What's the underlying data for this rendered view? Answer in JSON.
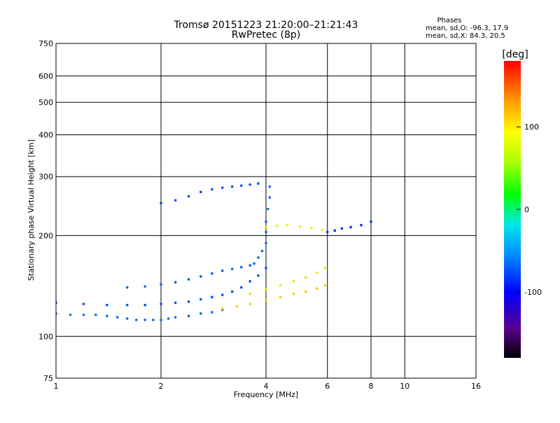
{
  "chart_data": {
    "type": "scatter",
    "title": "Tromsø 20151223 21:20:00–21:21:43",
    "subtitle": "RwPretec (8p)",
    "stats": {
      "header": "Phases",
      "o_line": "mean, sd,O: -96.3, 17.9",
      "x_line": "mean, sd,X:  84.3, 20.5"
    },
    "xlabel": "Frequency [MHz]",
    "ylabel": "Stationary phase Virtual Height [km]",
    "xscale": "log2",
    "yscale": "log",
    "xlim": [
      1,
      16
    ],
    "ylim": [
      75,
      750
    ],
    "xticks": [
      {
        "v": 1,
        "label": "1"
      },
      {
        "v": 2,
        "label": "2"
      },
      {
        "v": 4,
        "label": "4"
      },
      {
        "v": 6,
        "label": "6"
      },
      {
        "v": 8,
        "label": "8"
      },
      {
        "v": 10,
        "label": "10"
      },
      {
        "v": 16,
        "label": "16"
      }
    ],
    "yticks": [
      {
        "v": 75,
        "label": "75"
      },
      {
        "v": 100,
        "label": "100"
      },
      {
        "v": 200,
        "label": "200"
      },
      {
        "v": 300,
        "label": "300"
      },
      {
        "v": 400,
        "label": "400"
      },
      {
        "v": 500,
        "label": "500"
      },
      {
        "v": 600,
        "label": "600"
      },
      {
        "v": 750,
        "label": "750"
      }
    ],
    "grid": true,
    "colorbar": {
      "label": "[deg]",
      "range": [
        -180,
        180
      ],
      "ticks": [
        {
          "v": 100,
          "label": "100"
        },
        {
          "v": 0,
          "label": "0"
        },
        {
          "v": -100,
          "label": "-100"
        }
      ]
    },
    "series": [
      {
        "trace": "o-trace lower layer",
        "x": [
          1.0,
          1.1,
          1.2,
          1.3,
          1.4,
          1.5,
          1.6,
          1.7,
          1.8,
          1.9,
          2.0,
          2.1,
          2.2,
          2.4,
          2.6,
          2.8,
          3.0
        ],
        "y": [
          117,
          116,
          116,
          116,
          115,
          114,
          113,
          112,
          112,
          112,
          112,
          113,
          114,
          115,
          117,
          118,
          120
        ],
        "phase": -100
      },
      {
        "trace": "o-trace rising layer",
        "x": [
          1.0,
          1.2,
          1.4,
          1.6,
          1.8,
          2.0,
          2.2,
          2.4,
          2.6,
          2.8,
          3.0,
          3.2,
          3.4,
          3.6,
          3.8,
          4.0
        ],
        "y": [
          126,
          125,
          124,
          124,
          124,
          125,
          126,
          127,
          129,
          131,
          133,
          136,
          140,
          146,
          152,
          160
        ],
        "phase": -110
      },
      {
        "trace": "upper o-band",
        "x": [
          1.6,
          1.8,
          2.0,
          2.2,
          2.4,
          2.6,
          2.8,
          3.0,
          3.2,
          3.4,
          3.6
        ],
        "y": [
          140,
          141,
          143,
          145,
          148,
          151,
          154,
          157,
          159,
          161,
          163
        ],
        "phase": -105
      },
      {
        "trace": "steep o-trace near 4 MHz",
        "x": [
          3.7,
          3.8,
          3.9,
          4.0,
          4.0,
          4.0,
          4.05,
          4.1,
          4.1
        ],
        "y": [
          165,
          172,
          180,
          190,
          205,
          220,
          240,
          260,
          280
        ],
        "phase": -100
      },
      {
        "trace": "x-trace lower",
        "x": [
          3.0,
          3.3,
          3.6,
          4.0,
          4.4,
          4.8,
          5.2,
          5.6,
          5.9
        ],
        "y": [
          121,
          123,
          125,
          128,
          131,
          134,
          136,
          139,
          142
        ],
        "phase": 95
      },
      {
        "trace": "x-trace upper",
        "x": [
          3.6,
          4.0,
          4.4,
          4.8,
          5.2,
          5.6,
          5.9
        ],
        "y": [
          134,
          138,
          142,
          146,
          150,
          155,
          160
        ],
        "phase": 90
      },
      {
        "trace": "F-layer o cluster",
        "x": [
          2.0,
          2.2,
          2.4,
          2.6,
          2.8,
          3.0,
          3.2,
          3.4,
          3.6,
          3.8
        ],
        "y": [
          250,
          255,
          262,
          270,
          275,
          278,
          280,
          282,
          284,
          286
        ],
        "phase": -110
      },
      {
        "trace": "F-layer x cluster",
        "x": [
          4.0,
          4.3,
          4.6,
          5.0,
          5.4,
          5.8
        ],
        "y": [
          212,
          214,
          215,
          213,
          211,
          208
        ],
        "phase": 80
      },
      {
        "trace": "high-frequency o trace",
        "x": [
          6.0,
          6.3,
          6.6,
          7.0,
          7.5,
          8.0
        ],
        "y": [
          205,
          207,
          210,
          212,
          215,
          220
        ],
        "phase": -120
      }
    ]
  }
}
